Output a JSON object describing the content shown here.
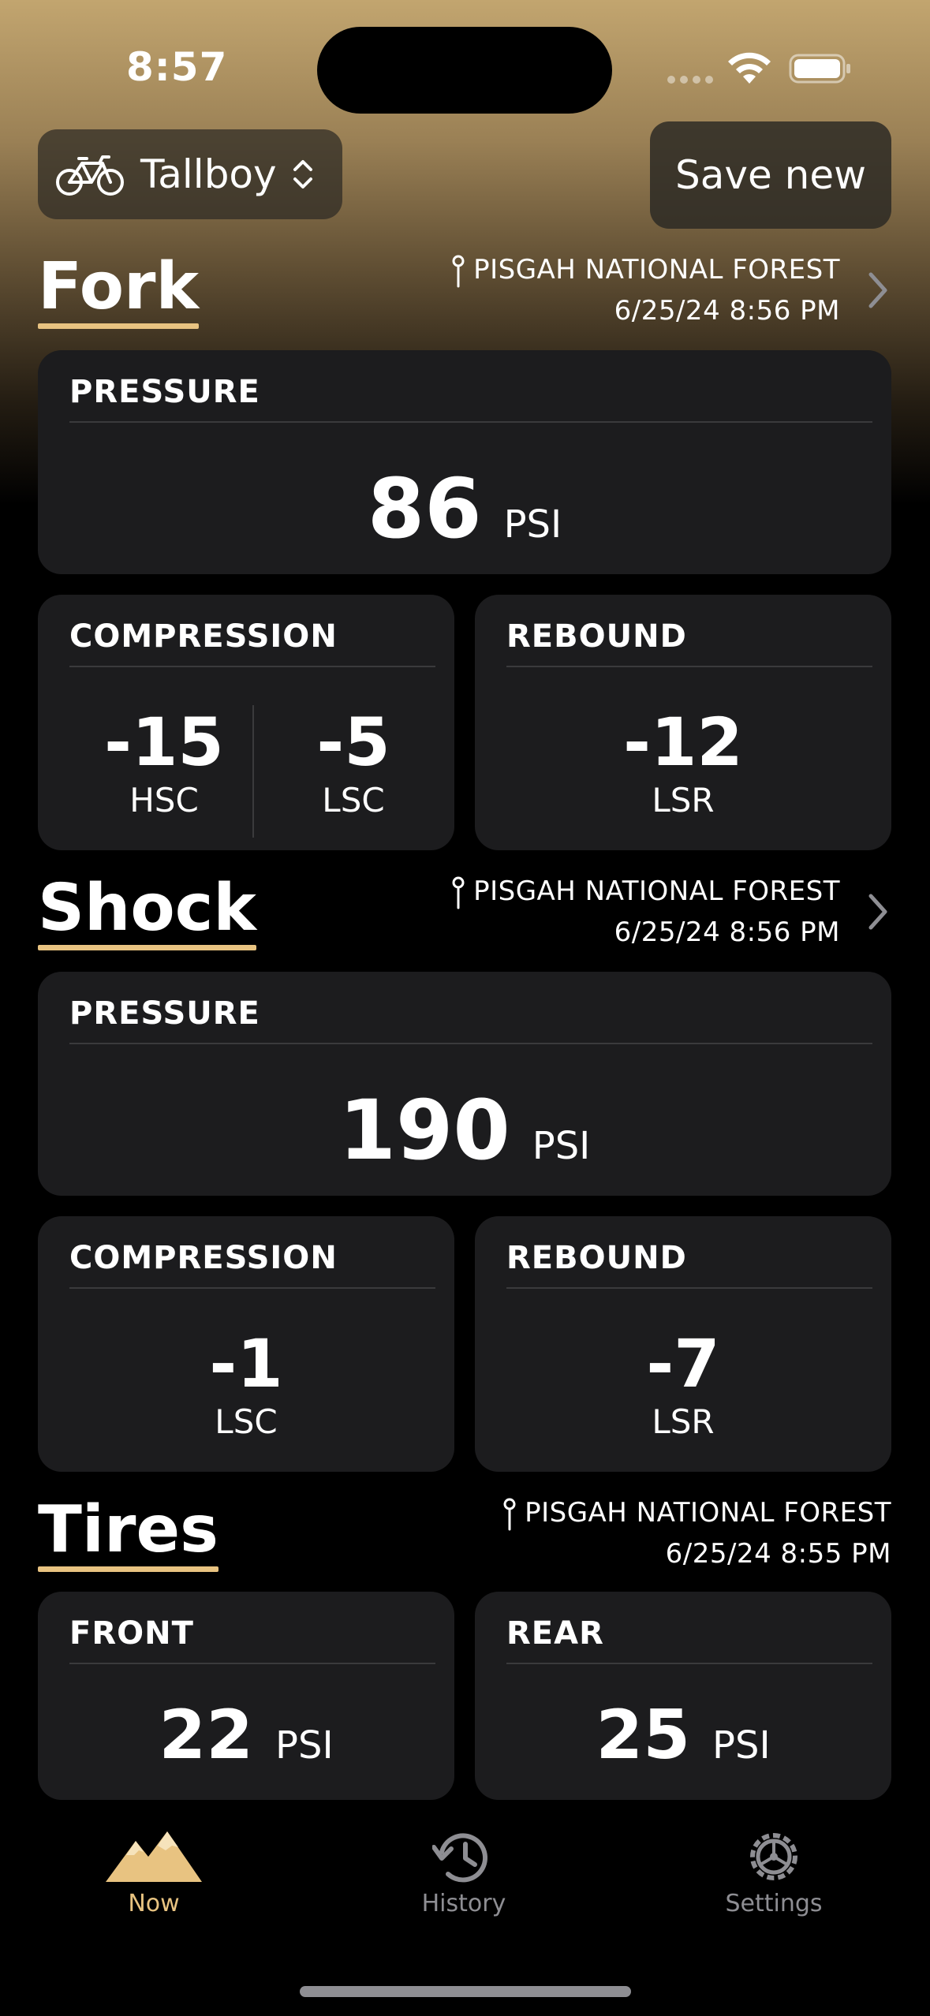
{
  "status": {
    "time": "8:57"
  },
  "header": {
    "bike_name": "Tallboy",
    "save_label": "Save new"
  },
  "fork": {
    "title": "Fork",
    "location": "PISGAH NATIONAL FOREST",
    "datetime": "6/25/24 8:56 PM",
    "pressure": {
      "label": "PRESSURE",
      "value": "86",
      "unit": "PSI"
    },
    "compression": {
      "label": "COMPRESSION",
      "hsc": "-15",
      "hsc_label": "HSC",
      "lsc": "-5",
      "lsc_label": "LSC"
    },
    "rebound": {
      "label": "REBOUND",
      "value": "-12",
      "sub": "LSR"
    }
  },
  "shock": {
    "title": "Shock",
    "location": "PISGAH NATIONAL FOREST",
    "datetime": "6/25/24 8:56 PM",
    "pressure": {
      "label": "PRESSURE",
      "value": "190",
      "unit": "PSI"
    },
    "compression": {
      "label": "COMPRESSION",
      "value": "-1",
      "sub": "LSC"
    },
    "rebound": {
      "label": "REBOUND",
      "value": "-7",
      "sub": "LSR"
    }
  },
  "tires": {
    "title": "Tires",
    "location": "PISGAH NATIONAL FOREST",
    "datetime": "6/25/24 8:55 PM",
    "front": {
      "label": "FRONT",
      "value": "22",
      "unit": "PSI"
    },
    "rear": {
      "label": "REAR",
      "value": "25",
      "unit": "PSI"
    }
  },
  "tabs": [
    {
      "label": "Now",
      "icon": "mountains-icon",
      "active": true
    },
    {
      "label": "History",
      "icon": "history-icon",
      "active": false
    },
    {
      "label": "Settings",
      "icon": "gear-icon",
      "active": false
    }
  ],
  "colors": {
    "accent": "#e8c381",
    "card": "#1c1c1e",
    "inactive": "#8e8e93"
  }
}
